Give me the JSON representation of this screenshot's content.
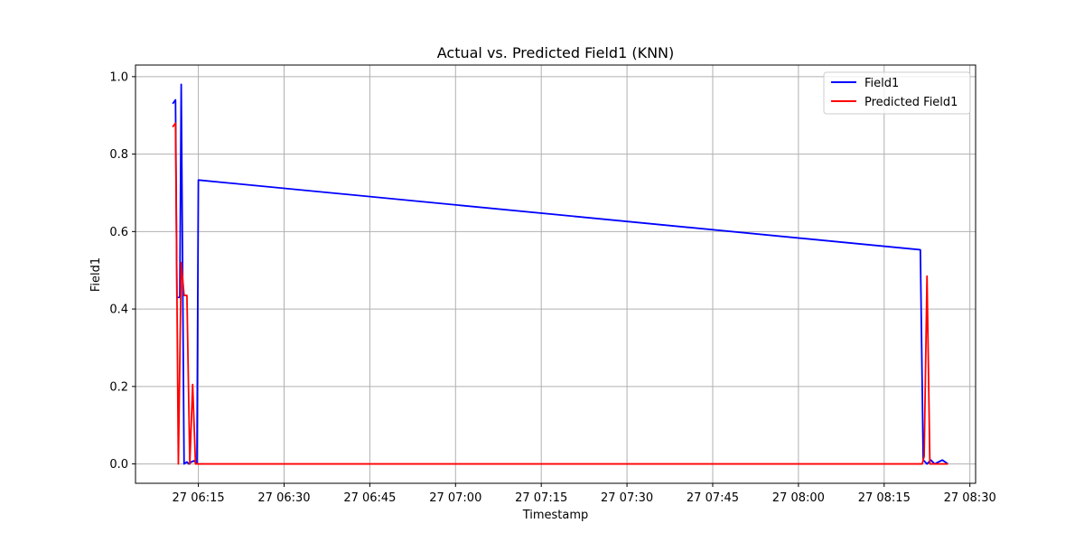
{
  "chart_data": {
    "type": "line",
    "title": "Actual vs. Predicted Field1 (KNN)",
    "xlabel": "Timestamp",
    "ylabel": "Field1",
    "x_axis_kind": "time",
    "xlim": [
      "06:04",
      "08:31"
    ],
    "ylim": [
      -0.05,
      1.03
    ],
    "grid": true,
    "legend_position": "top-right",
    "xticks": [
      {
        "value": "06:15",
        "label": "27 06:15"
      },
      {
        "value": "06:30",
        "label": "27 06:30"
      },
      {
        "value": "06:45",
        "label": "27 06:45"
      },
      {
        "value": "07:00",
        "label": "27 07:00"
      },
      {
        "value": "07:15",
        "label": "27 07:15"
      },
      {
        "value": "07:30",
        "label": "27 07:30"
      },
      {
        "value": "07:45",
        "label": "27 07:45"
      },
      {
        "value": "08:00",
        "label": "27 08:00"
      },
      {
        "value": "08:15",
        "label": "27 08:15"
      },
      {
        "value": "08:30",
        "label": "27 08:30"
      }
    ],
    "yticks": [
      {
        "value": 0.0,
        "label": "0.0"
      },
      {
        "value": 0.2,
        "label": "0.2"
      },
      {
        "value": 0.4,
        "label": "0.4"
      },
      {
        "value": 0.6,
        "label": "0.6"
      },
      {
        "value": 0.8,
        "label": "0.8"
      },
      {
        "value": 1.0,
        "label": "1.0"
      }
    ],
    "series": [
      {
        "name": "Field1",
        "color": "#0000ff",
        "points": [
          [
            "06:10:30",
            0.93
          ],
          [
            "06:11:00",
            0.94
          ],
          [
            "06:11:15",
            0.43
          ],
          [
            "06:11:45",
            0.43
          ],
          [
            "06:12:00",
            0.98
          ],
          [
            "06:12:30",
            0.0
          ],
          [
            "06:13:00",
            0.005
          ],
          [
            "06:13:20",
            0.0
          ],
          [
            "06:13:45",
            0.005
          ],
          [
            "06:14:15",
            0.008
          ],
          [
            "06:14:45",
            0.0
          ],
          [
            "06:15:00",
            0.733
          ],
          [
            "08:21:20",
            0.553
          ],
          [
            "08:21:50",
            0.01
          ],
          [
            "08:22:30",
            0.0
          ],
          [
            "08:23:10",
            0.01
          ],
          [
            "08:23:50",
            0.0
          ],
          [
            "08:24:30",
            0.005
          ],
          [
            "08:25:10",
            0.01
          ],
          [
            "08:25:40",
            0.005
          ],
          [
            "08:26:10",
            0.0
          ]
        ]
      },
      {
        "name": "Predicted Field1",
        "color": "#ff0000",
        "points": [
          [
            "06:10:30",
            0.87
          ],
          [
            "06:11:00",
            0.88
          ],
          [
            "06:11:30",
            0.0
          ],
          [
            "06:12:00",
            0.52
          ],
          [
            "06:12:30",
            0.435
          ],
          [
            "06:13:00",
            0.435
          ],
          [
            "06:13:30",
            0.0
          ],
          [
            "06:14:00",
            0.205
          ],
          [
            "06:14:30",
            0.0
          ],
          [
            "06:15:00",
            0.0
          ],
          [
            "08:21:40",
            0.0
          ],
          [
            "08:22:00",
            0.02
          ],
          [
            "08:22:30",
            0.485
          ],
          [
            "08:23:00",
            0.0
          ],
          [
            "08:26:10",
            0.0
          ]
        ]
      }
    ]
  }
}
